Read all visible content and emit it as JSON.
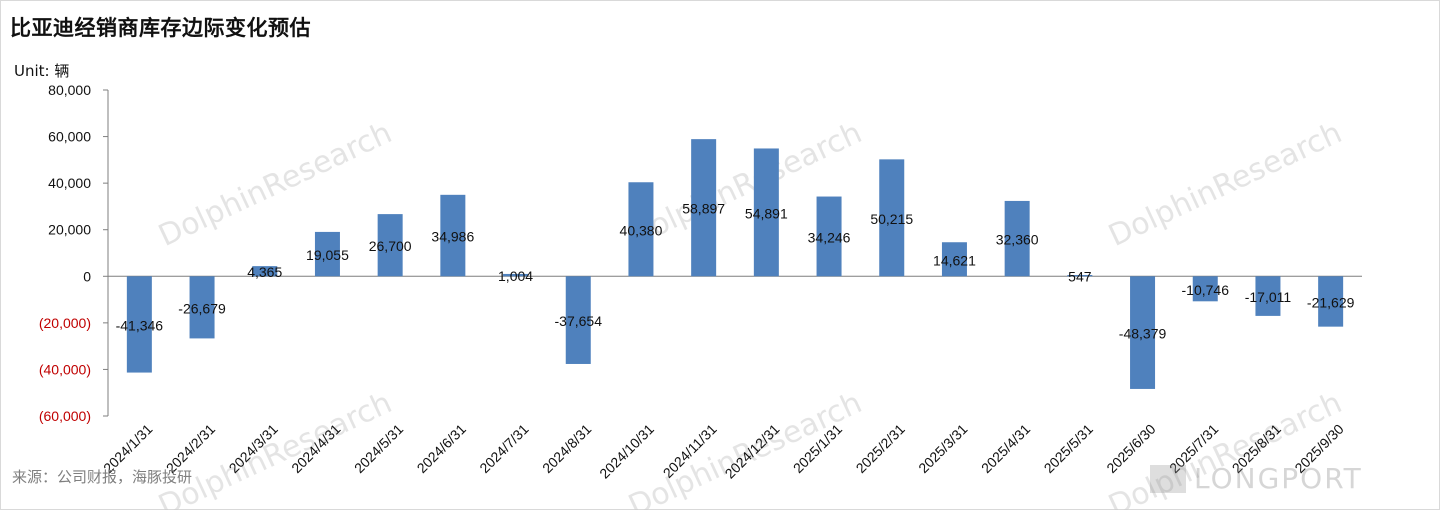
{
  "title": "比亚迪经销商库存边际变化预估",
  "unit_label": "Unit: 辆",
  "source": "来源：公司财报，海豚投研",
  "watermark": "DolphinResearch",
  "logo_text": "LONGPORT",
  "colors": {
    "bar": "#4f81bd",
    "negative_tick": "#c00000",
    "axis": "#7f7f7f"
  },
  "chart_data": {
    "type": "bar",
    "categories": [
      "2024/1/31",
      "2024/2/31",
      "2024/3/31",
      "2024/4/31",
      "2024/5/31",
      "2024/6/31",
      "2024/7/31",
      "2024/8/31",
      "2024/10/31",
      "2024/11/31",
      "2024/12/31",
      "2025/1/31",
      "2025/2/31",
      "2025/3/31",
      "2025/4/31",
      "2025/5/31",
      "2025/6/30",
      "2025/7/31",
      "2025/8/31",
      "2025/9/30"
    ],
    "values": [
      -41346,
      -26679,
      4365,
      19055,
      26700,
      34986,
      1004,
      -37654,
      40380,
      58897,
      54891,
      34246,
      50215,
      14621,
      32360,
      547,
      -48379,
      -10746,
      -17011,
      -21629
    ],
    "value_labels": [
      "-41,346",
      "-26,679",
      "4,365",
      "19,055",
      "26,700",
      "34,986",
      "1,004",
      "-37,654",
      "40,380",
      "58,897",
      "54,891",
      "34,246",
      "50,215",
      "14,621",
      "32,360",
      "547",
      "-48,379",
      "-10,746",
      "-17,011",
      "-21,629"
    ],
    "yticks": [
      80000,
      60000,
      40000,
      20000,
      0,
      -20000,
      -40000,
      -60000
    ],
    "ytick_labels": [
      "80,000",
      "60,000",
      "40,000",
      "20,000",
      "0",
      "(20,000)",
      "(40,000)",
      "(60,000)"
    ],
    "ylim": [
      -60000,
      80000
    ],
    "grid": false,
    "legend": "none"
  }
}
